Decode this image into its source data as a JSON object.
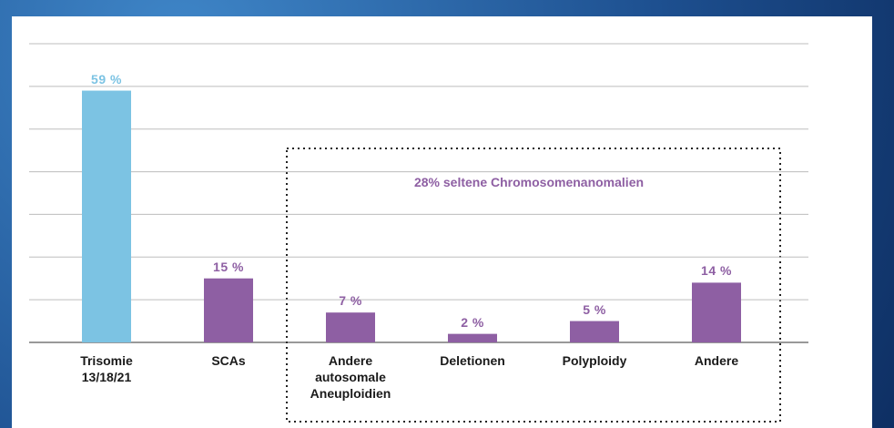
{
  "chart_data": {
    "type": "bar",
    "categories": [
      "Trisomie\n13/18/21",
      "SCAs",
      "Andere\nautosomale\nAneuploidien",
      "Deletionen",
      "Polyploidy",
      "Andere"
    ],
    "values": [
      59,
      15,
      7,
      2,
      5,
      14
    ],
    "value_labels": [
      "59 %",
      "15 %",
      "7 %",
      "2 %",
      "5 %",
      "14 %"
    ],
    "colors": [
      "#7cc3e3",
      "#8e5fa3",
      "#8e5fa3",
      "#8e5fa3",
      "#8e5fa3",
      "#8e5fa3"
    ],
    "annotation": "28% seltene Chromosomenanomalien",
    "ylim": [
      0,
      70
    ],
    "yticks": [
      0,
      10,
      20,
      30,
      40,
      50,
      60,
      70
    ],
    "grid": true
  }
}
